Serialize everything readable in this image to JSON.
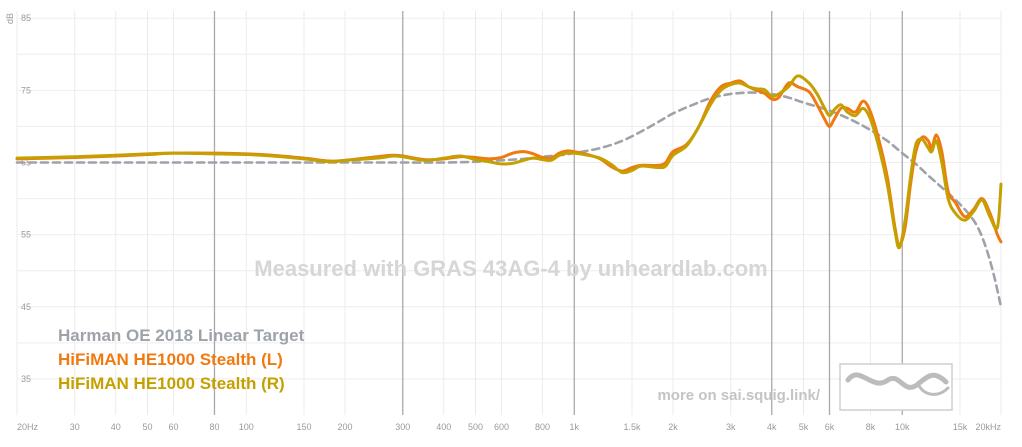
{
  "chart_data": {
    "type": "line",
    "xscale": "log",
    "xlim": [
      20,
      20000
    ],
    "ylim": [
      30,
      86
    ],
    "ylabel": "dB",
    "x_ticks": [
      {
        "v": 20,
        "label": "20Hz",
        "major": false
      },
      {
        "v": 30,
        "label": "30",
        "major": false
      },
      {
        "v": 40,
        "label": "40",
        "major": false
      },
      {
        "v": 50,
        "label": "50",
        "major": false
      },
      {
        "v": 60,
        "label": "60",
        "major": false
      },
      {
        "v": 80,
        "label": "80",
        "major": true
      },
      {
        "v": 100,
        "label": "100",
        "major": false
      },
      {
        "v": 150,
        "label": "150",
        "major": false
      },
      {
        "v": 200,
        "label": "200",
        "major": false
      },
      {
        "v": 300,
        "label": "300",
        "major": true
      },
      {
        "v": 400,
        "label": "400",
        "major": false
      },
      {
        "v": 500,
        "label": "500",
        "major": false
      },
      {
        "v": 600,
        "label": "600",
        "major": false
      },
      {
        "v": 800,
        "label": "800",
        "major": false
      },
      {
        "v": 1000,
        "label": "1k",
        "major": true
      },
      {
        "v": 1500,
        "label": "1.5k",
        "major": false
      },
      {
        "v": 2000,
        "label": "2k",
        "major": false
      },
      {
        "v": 3000,
        "label": "3k",
        "major": false
      },
      {
        "v": 4000,
        "label": "4k",
        "major": true
      },
      {
        "v": 5000,
        "label": "5k",
        "major": false
      },
      {
        "v": 6000,
        "label": "6k",
        "major": true
      },
      {
        "v": 8000,
        "label": "8k",
        "major": false
      },
      {
        "v": 10000,
        "label": "10k",
        "major": true
      },
      {
        "v": 15000,
        "label": "15k",
        "major": false
      },
      {
        "v": 20000,
        "label": "20kHz",
        "major": false
      }
    ],
    "y_ticks": [
      {
        "v": 85,
        "label": "85"
      },
      {
        "v": 75,
        "label": "75"
      },
      {
        "v": 65,
        "label": "65"
      },
      {
        "v": 55,
        "label": "55"
      },
      {
        "v": 45,
        "label": "45"
      },
      {
        "v": 35,
        "label": "35"
      }
    ],
    "watermark": "Measured with GRAS 43AG-4 by unheardlab.com",
    "footer": "more on sai.squig.link/",
    "legend": [
      {
        "label": "Harman OE 2018 Linear Target",
        "color": "#9ea3a9"
      },
      {
        "label": "HiFiMAN HE1000 Stealth (L)",
        "color": "#f07a10"
      },
      {
        "label": "HiFiMAN HE1000 Stealth (R)",
        "color": "#c4a000"
      }
    ],
    "series": [
      {
        "name": "Harman OE 2018 Linear Target",
        "color": "#9ea3a9",
        "dashed": true,
        "points": [
          [
            20,
            65
          ],
          [
            30,
            65
          ],
          [
            50,
            65
          ],
          [
            80,
            65
          ],
          [
            100,
            65
          ],
          [
            150,
            65
          ],
          [
            200,
            65
          ],
          [
            300,
            65
          ],
          [
            400,
            65
          ],
          [
            500,
            65.1
          ],
          [
            600,
            65.3
          ],
          [
            700,
            65.5
          ],
          [
            800,
            65.8
          ],
          [
            900,
            66
          ],
          [
            1000,
            66.3
          ],
          [
            1200,
            67
          ],
          [
            1400,
            68
          ],
          [
            1600,
            69.3
          ],
          [
            1800,
            70.6
          ],
          [
            2000,
            71.8
          ],
          [
            2300,
            73
          ],
          [
            2600,
            73.9
          ],
          [
            3000,
            74.5
          ],
          [
            3500,
            74.7
          ],
          [
            4000,
            74.5
          ],
          [
            4500,
            74
          ],
          [
            5000,
            73.3
          ],
          [
            6000,
            72.2
          ],
          [
            7000,
            70.9
          ],
          [
            8000,
            69.5
          ],
          [
            9000,
            68
          ],
          [
            10000,
            66.3
          ],
          [
            11000,
            64.8
          ],
          [
            12000,
            63.2
          ],
          [
            13000,
            61.8
          ],
          [
            14000,
            60.5
          ],
          [
            15000,
            59.2
          ],
          [
            16000,
            57.8
          ],
          [
            17000,
            56
          ],
          [
            18000,
            53.2
          ],
          [
            19000,
            49.5
          ],
          [
            20000,
            45
          ]
        ]
      },
      {
        "name": "HiFiMAN HE1000 Stealth (L)",
        "color": "#f07a10",
        "dashed": false,
        "points": [
          [
            20,
            65.5
          ],
          [
            30,
            65.7
          ],
          [
            40,
            65.9
          ],
          [
            50,
            66.1
          ],
          [
            60,
            66.3
          ],
          [
            80,
            66.3
          ],
          [
            100,
            66.2
          ],
          [
            120,
            66
          ],
          [
            150,
            65.6
          ],
          [
            180,
            65.2
          ],
          [
            200,
            65.3
          ],
          [
            250,
            65.8
          ],
          [
            280,
            66
          ],
          [
            300,
            65.9
          ],
          [
            350,
            65.4
          ],
          [
            400,
            65.5
          ],
          [
            450,
            65.8
          ],
          [
            500,
            65.7
          ],
          [
            550,
            65.5
          ],
          [
            600,
            65.7
          ],
          [
            650,
            66.3
          ],
          [
            700,
            66.5
          ],
          [
            750,
            66.2
          ],
          [
            800,
            65.7
          ],
          [
            850,
            65.6
          ],
          [
            900,
            66.3
          ],
          [
            950,
            66.6
          ],
          [
            1000,
            66.5
          ],
          [
            1100,
            66.1
          ],
          [
            1200,
            65.5
          ],
          [
            1300,
            64.4
          ],
          [
            1400,
            63.8
          ],
          [
            1500,
            64.3
          ],
          [
            1600,
            64.6
          ],
          [
            1800,
            64.6
          ],
          [
            1900,
            65
          ],
          [
            2000,
            66.5
          ],
          [
            2200,
            67.5
          ],
          [
            2400,
            70
          ],
          [
            2600,
            73.5
          ],
          [
            2800,
            75.5
          ],
          [
            3000,
            76
          ],
          [
            3200,
            76.3
          ],
          [
            3400,
            75.5
          ],
          [
            3600,
            75
          ],
          [
            3800,
            74.6
          ],
          [
            4000,
            73.8
          ],
          [
            4200,
            74
          ],
          [
            4500,
            76
          ],
          [
            4800,
            75.5
          ],
          [
            5200,
            74.8
          ],
          [
            5500,
            73
          ],
          [
            5800,
            71
          ],
          [
            6000,
            70
          ],
          [
            6200,
            71
          ],
          [
            6500,
            72.5
          ],
          [
            6800,
            72.5
          ],
          [
            7200,
            72
          ],
          [
            7600,
            73.5
          ],
          [
            8000,
            72
          ],
          [
            8500,
            68
          ],
          [
            9000,
            63
          ],
          [
            9500,
            56
          ],
          [
            9800,
            53.5
          ],
          [
            10200,
            56
          ],
          [
            10600,
            62
          ],
          [
            11000,
            66.5
          ],
          [
            11500,
            68.5
          ],
          [
            12000,
            68
          ],
          [
            12300,
            67
          ],
          [
            12700,
            68.8
          ],
          [
            13200,
            66.5
          ],
          [
            13800,
            61
          ],
          [
            14500,
            59.5
          ],
          [
            15500,
            57.5
          ],
          [
            16500,
            58.5
          ],
          [
            17500,
            60
          ],
          [
            18500,
            58
          ],
          [
            19500,
            55
          ],
          [
            20000,
            54
          ]
        ]
      },
      {
        "name": "HiFiMAN HE1000 Stealth (R)",
        "color": "#c4a000",
        "dashed": false,
        "points": [
          [
            20,
            65.6
          ],
          [
            30,
            65.8
          ],
          [
            40,
            66
          ],
          [
            50,
            66.2
          ],
          [
            60,
            66.3
          ],
          [
            80,
            66.2
          ],
          [
            100,
            66.1
          ],
          [
            120,
            65.9
          ],
          [
            150,
            65.5
          ],
          [
            180,
            65.1
          ],
          [
            200,
            65.3
          ],
          [
            250,
            65.6
          ],
          [
            280,
            65.9
          ],
          [
            300,
            65.8
          ],
          [
            350,
            65.3
          ],
          [
            400,
            65.6
          ],
          [
            450,
            65.9
          ],
          [
            500,
            65.4
          ],
          [
            550,
            65.1
          ],
          [
            600,
            64.8
          ],
          [
            650,
            64.9
          ],
          [
            700,
            65.3
          ],
          [
            750,
            65.6
          ],
          [
            800,
            65.4
          ],
          [
            850,
            65.3
          ],
          [
            900,
            66
          ],
          [
            950,
            66.3
          ],
          [
            1000,
            66.3
          ],
          [
            1100,
            66
          ],
          [
            1200,
            65.6
          ],
          [
            1300,
            64.7
          ],
          [
            1400,
            63.6
          ],
          [
            1500,
            63.9
          ],
          [
            1600,
            64.5
          ],
          [
            1800,
            64.3
          ],
          [
            1900,
            64.5
          ],
          [
            2000,
            66
          ],
          [
            2200,
            67.3
          ],
          [
            2400,
            70
          ],
          [
            2600,
            73
          ],
          [
            2800,
            75
          ],
          [
            3000,
            75.8
          ],
          [
            3200,
            76
          ],
          [
            3400,
            75.5
          ],
          [
            3600,
            75.2
          ],
          [
            3800,
            75.1
          ],
          [
            4000,
            74.2
          ],
          [
            4200,
            74.5
          ],
          [
            4500,
            75.5
          ],
          [
            4800,
            77
          ],
          [
            5200,
            76
          ],
          [
            5500,
            74.5
          ],
          [
            5800,
            72.5
          ],
          [
            6000,
            71.5
          ],
          [
            6200,
            72.3
          ],
          [
            6500,
            73
          ],
          [
            6800,
            72
          ],
          [
            7200,
            71.5
          ],
          [
            7600,
            72.5
          ],
          [
            8000,
            71
          ],
          [
            8500,
            67
          ],
          [
            9000,
            62
          ],
          [
            9500,
            55.5
          ],
          [
            9800,
            53.2
          ],
          [
            10200,
            57
          ],
          [
            10600,
            63
          ],
          [
            11000,
            67.5
          ],
          [
            11500,
            68.2
          ],
          [
            12000,
            67
          ],
          [
            12300,
            66.5
          ],
          [
            12700,
            68
          ],
          [
            13200,
            65
          ],
          [
            13800,
            60
          ],
          [
            14500,
            58
          ],
          [
            15500,
            57
          ],
          [
            16500,
            58.2
          ],
          [
            17500,
            59.8
          ],
          [
            18500,
            57.5
          ],
          [
            19500,
            56
          ],
          [
            20000,
            62
          ]
        ]
      }
    ]
  }
}
